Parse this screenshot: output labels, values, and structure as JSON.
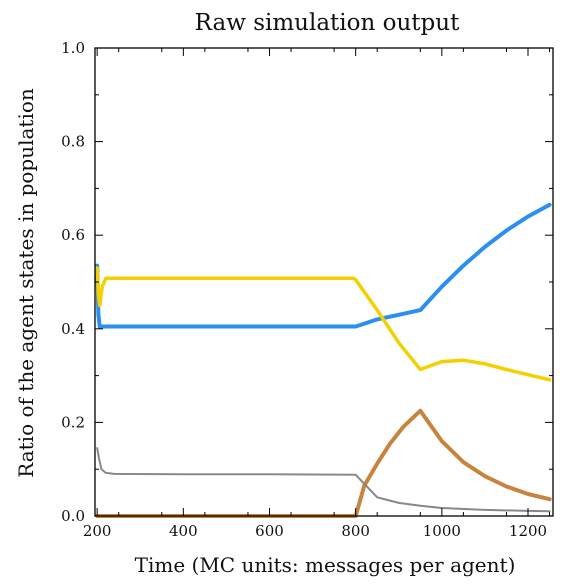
{
  "chart_data": {
    "type": "line",
    "title": "Raw simulation output",
    "xlabel": "Time (MC units: messages per agent)",
    "ylabel": "Ratio of the agent states in population",
    "xlim": [
      195,
      1258
    ],
    "ylim": [
      0.0,
      1.0
    ],
    "xticks": [
      200,
      400,
      600,
      800,
      1000,
      1200
    ],
    "xtick_labels": [
      "200",
      "400",
      "600",
      "800",
      "1000",
      "1200"
    ],
    "yticks": [
      0.0,
      0.2,
      0.4,
      0.6,
      0.8,
      1.0
    ],
    "ytick_labels": [
      "0.0",
      "0.2",
      "0.4",
      "0.6",
      "0.8",
      "1.0"
    ],
    "grid": false,
    "legend": "none",
    "series": [
      {
        "color": "#2a8ff0",
        "x": [
          200,
          203,
          206,
          250,
          400,
          600,
          800,
          850,
          900,
          950,
          1000,
          1050,
          1100,
          1150,
          1200,
          1250
        ],
        "y": [
          0.535,
          0.43,
          0.405,
          0.405,
          0.405,
          0.405,
          0.405,
          0.42,
          0.43,
          0.44,
          0.49,
          0.535,
          0.575,
          0.61,
          0.64,
          0.665
        ]
      },
      {
        "color": "#f5d000",
        "x": [
          200,
          203,
          206,
          212,
          220,
          400,
          600,
          795,
          800,
          850,
          900,
          950,
          1000,
          1050,
          1100,
          1150,
          1200,
          1250
        ],
        "y": [
          0.53,
          0.47,
          0.45,
          0.49,
          0.508,
          0.508,
          0.508,
          0.508,
          0.505,
          0.44,
          0.37,
          0.313,
          0.33,
          0.333,
          0.325,
          0.313,
          0.302,
          0.291
        ]
      },
      {
        "color": "#c8843e",
        "x": [
          200,
          400,
          600,
          800,
          820,
          850,
          880,
          910,
          950,
          1000,
          1050,
          1100,
          1150,
          1200,
          1250
        ],
        "y": [
          0.0,
          0.0,
          0.0,
          0.0,
          0.065,
          0.112,
          0.155,
          0.19,
          0.225,
          0.16,
          0.115,
          0.085,
          0.063,
          0.047,
          0.036
        ]
      },
      {
        "color": "#888888",
        "x": [
          200,
          202,
          205,
          210,
          220,
          240,
          400,
          600,
          800,
          850,
          900,
          950,
          1000,
          1100,
          1200,
          1250
        ],
        "y": [
          0.145,
          0.135,
          0.12,
          0.1,
          0.092,
          0.09,
          0.089,
          0.089,
          0.088,
          0.04,
          0.028,
          0.022,
          0.017,
          0.013,
          0.011,
          0.01
        ]
      }
    ]
  }
}
